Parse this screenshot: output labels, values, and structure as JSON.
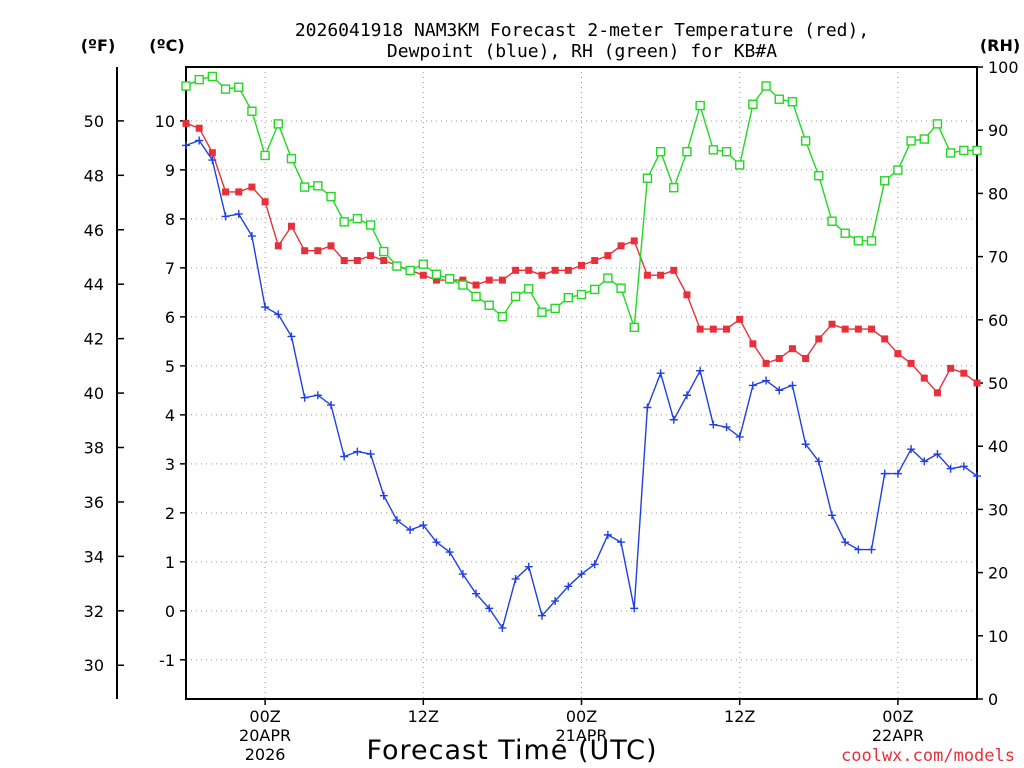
{
  "chart_data": {
    "type": "line",
    "title_line1": "2026041918 NAM3KM Forecast 2-meter Temperature (red),",
    "title_line2": "Dewpoint (blue), RH (green) for KB#A",
    "xlabel": "Forecast Time (UTC)",
    "credit": "coolwx.com/models",
    "unit_left_f": "(ºF)",
    "unit_left_c": "(ºC)",
    "unit_right": "(RH)",
    "x_range_hours": [
      -6,
      54
    ],
    "ylim_c": [
      -1.8,
      11.1
    ],
    "ylim_rh": [
      0,
      100
    ],
    "f_ticks": [
      "30",
      "32",
      "34",
      "36",
      "38",
      "40",
      "42",
      "44",
      "46",
      "48",
      "50"
    ],
    "c_ticks": [
      "-1",
      "0",
      "1",
      "2",
      "3",
      "4",
      "5",
      "6",
      "7",
      "8",
      "9",
      "10"
    ],
    "rh_ticks": [
      "0",
      "10",
      "20",
      "30",
      "40",
      "50",
      "60",
      "70",
      "80",
      "90",
      "100"
    ],
    "x_ticks": [
      {
        "hour": 0,
        "line1": "00Z",
        "line2": "20APR",
        "line3": "2026"
      },
      {
        "hour": 12,
        "line1": "12Z",
        "line2": "",
        "line3": ""
      },
      {
        "hour": 24,
        "line1": "00Z",
        "line2": "21APR",
        "line3": ""
      },
      {
        "hour": 36,
        "line1": "12Z",
        "line2": "",
        "line3": ""
      },
      {
        "hour": 48,
        "line1": "00Z",
        "line2": "22APR",
        "line3": ""
      }
    ],
    "x_hours_start": -6,
    "x_hours_step": 1,
    "series": [
      {
        "name": "Temperature",
        "color": "#e8303a",
        "axis": "celsius",
        "marker": "filled-square",
        "values": [
          9.95,
          9.85,
          9.35,
          8.55,
          8.55,
          8.65,
          8.35,
          7.45,
          7.85,
          7.35,
          7.35,
          7.45,
          7.15,
          7.15,
          7.25,
          7.15,
          7.05,
          6.95,
          6.85,
          6.75,
          6.75,
          6.75,
          6.65,
          6.75,
          6.75,
          6.95,
          6.95,
          6.85,
          6.95,
          6.95,
          7.05,
          7.15,
          7.25,
          7.45,
          7.55,
          6.85,
          6.85,
          6.95,
          6.45,
          5.75,
          5.75,
          5.75,
          5.95,
          5.45,
          5.05,
          5.15,
          5.35,
          5.15,
          5.55,
          5.85,
          5.75,
          5.75,
          5.75,
          5.55,
          5.25,
          5.05,
          4.75,
          4.45,
          4.95,
          4.85,
          4.65
        ]
      },
      {
        "name": "Dewpoint",
        "color": "#2040e0",
        "axis": "celsius",
        "marker": "plus",
        "values": [
          9.5,
          9.6,
          9.2,
          8.05,
          8.1,
          7.65,
          6.2,
          6.05,
          5.6,
          4.35,
          4.4,
          4.2,
          3.15,
          3.25,
          3.2,
          2.35,
          1.85,
          1.65,
          1.75,
          1.4,
          1.2,
          0.75,
          0.35,
          0.05,
          -0.35,
          0.65,
          0.9,
          -0.1,
          0.2,
          0.5,
          0.75,
          0.95,
          1.55,
          1.4,
          0.05,
          4.15,
          4.85,
          3.9,
          4.4,
          4.9,
          3.8,
          3.75,
          3.55,
          4.6,
          4.7,
          4.5,
          4.6,
          3.4,
          3.05,
          1.95,
          1.4,
          1.25,
          1.25,
          2.8,
          2.8,
          3.3,
          3.05,
          3.2,
          2.9,
          2.95,
          2.75
        ]
      },
      {
        "name": "RH",
        "color": "#22d822",
        "axis": "rh",
        "marker": "open-square",
        "values": [
          97,
          98,
          98.5,
          96.5,
          96.8,
          93,
          86,
          91,
          85.5,
          81,
          81.2,
          79.5,
          75.5,
          76,
          75,
          70.8,
          68.5,
          67.8,
          68.8,
          67.2,
          66.5,
          65.5,
          63.7,
          62.3,
          60.5,
          63.7,
          64.9,
          61.2,
          61.8,
          63.5,
          64,
          64.8,
          66.6,
          65,
          58.8,
          82.4,
          86.6,
          80.9,
          86.6,
          93.9,
          86.9,
          86.6,
          84.5,
          94.1,
          97,
          94.9,
          94.5,
          88.3,
          82.8,
          75.6,
          73.7,
          72.5,
          72.5,
          82,
          83.7,
          88.3,
          88.6,
          91,
          86.4,
          86.8,
          86.8
        ]
      }
    ]
  }
}
